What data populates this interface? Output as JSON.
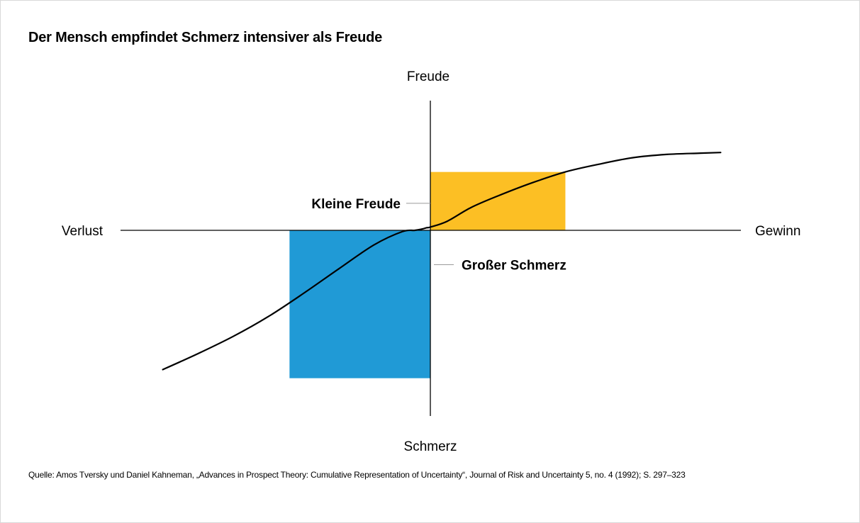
{
  "title": "Der Mensch empfindet Schmerz intensiver als Freude",
  "source": "Quelle: Amos Tversky und Daniel Kahneman, „Advances in Prospect Theory: Cumulative Representation of Uncertainty“, Journal of Risk and Uncertainty 5, no. 4 (1992); S. 297–323",
  "colors": {
    "gain_box": "#fcbf24",
    "loss_box": "#209ad6",
    "curve": "#000000",
    "axis": "#000000",
    "leader": "#9a9a9a"
  },
  "chart_data": {
    "type": "line",
    "axes": {
      "x_positive_label": "Gewinn",
      "x_negative_label": "Verlust",
      "y_positive_label": "Freude",
      "y_negative_label": "Schmerz"
    },
    "xlim": [
      -4.4,
      4.6
    ],
    "ylim": [
      -2.8,
      2.0
    ],
    "series": [
      {
        "x": [
          -3.8,
          -3.3,
          -2.8,
          -2.3,
          -1.8,
          -1.3,
          -0.8,
          -0.4,
          -0.22,
          -0.12,
          -0.05,
          0,
          0.25,
          0.6,
          1.0,
          1.5,
          2.0,
          2.5,
          3.0,
          3.5,
          4.0,
          4.3
        ],
        "y": [
          -2.1,
          -1.86,
          -1.6,
          -1.3,
          -0.95,
          -0.58,
          -0.22,
          -0.02,
          0.0,
          0.02,
          0.04,
          0.05,
          0.14,
          0.35,
          0.53,
          0.73,
          0.9,
          1.02,
          1.12,
          1.17,
          1.19,
          1.2
        ]
      }
    ],
    "boxes": [
      {
        "x": [
          0,
          2
        ],
        "y": [
          0,
          0.9
        ]
      },
      {
        "x": [
          -2,
          0
        ],
        "y": [
          -2.23,
          0
        ]
      }
    ],
    "annotations": [
      {
        "text": "Kleine Freude",
        "x": 0,
        "y": 0.45
      },
      {
        "text": "Großer Schmerz",
        "x": 0,
        "y": -0.55
      }
    ]
  }
}
